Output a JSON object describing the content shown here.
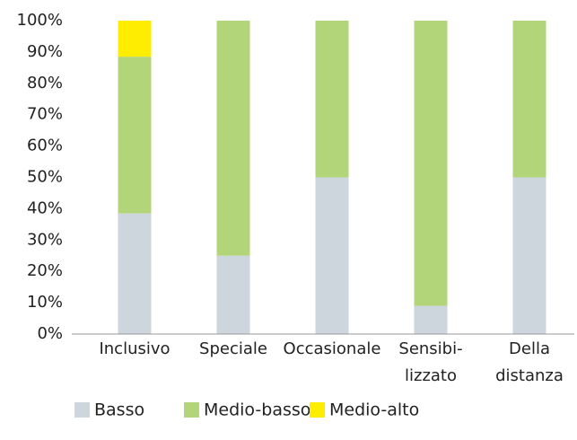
{
  "chart_data": {
    "type": "stacked_bar",
    "categories": [
      [
        "Inclusivo"
      ],
      [
        "Speciale"
      ],
      [
        "Occasionale"
      ],
      [
        "Sensibi-",
        "lizzato"
      ],
      [
        "Della",
        "distanza"
      ]
    ],
    "series": [
      {
        "name": "Basso",
        "color": "#cdd5dd",
        "values": [
          38.5,
          25,
          50,
          9,
          50
        ]
      },
      {
        "name": "Medio-basso",
        "color": "#b3d57a",
        "values": [
          50,
          75,
          50,
          91,
          50
        ]
      },
      {
        "name": "Medio-alto",
        "color": "#ffed00",
        "values": [
          11.5,
          0,
          0,
          0,
          0
        ]
      }
    ],
    "ylim": [
      0,
      100
    ],
    "yticks": [
      {
        "value": 0,
        "label": "0%"
      },
      {
        "value": 10,
        "label": "10%"
      },
      {
        "value": 20,
        "label": "20%"
      },
      {
        "value": 30,
        "label": "30%"
      },
      {
        "value": 40,
        "label": "40%"
      },
      {
        "value": 50,
        "label": "50%"
      },
      {
        "value": 60,
        "label": "60%"
      },
      {
        "value": 70,
        "label": "70%"
      },
      {
        "value": 80,
        "label": "80%"
      },
      {
        "value": 90,
        "label": "90%"
      },
      {
        "value": 100,
        "label": "100%"
      }
    ],
    "grid": false,
    "legend": "bottom"
  }
}
